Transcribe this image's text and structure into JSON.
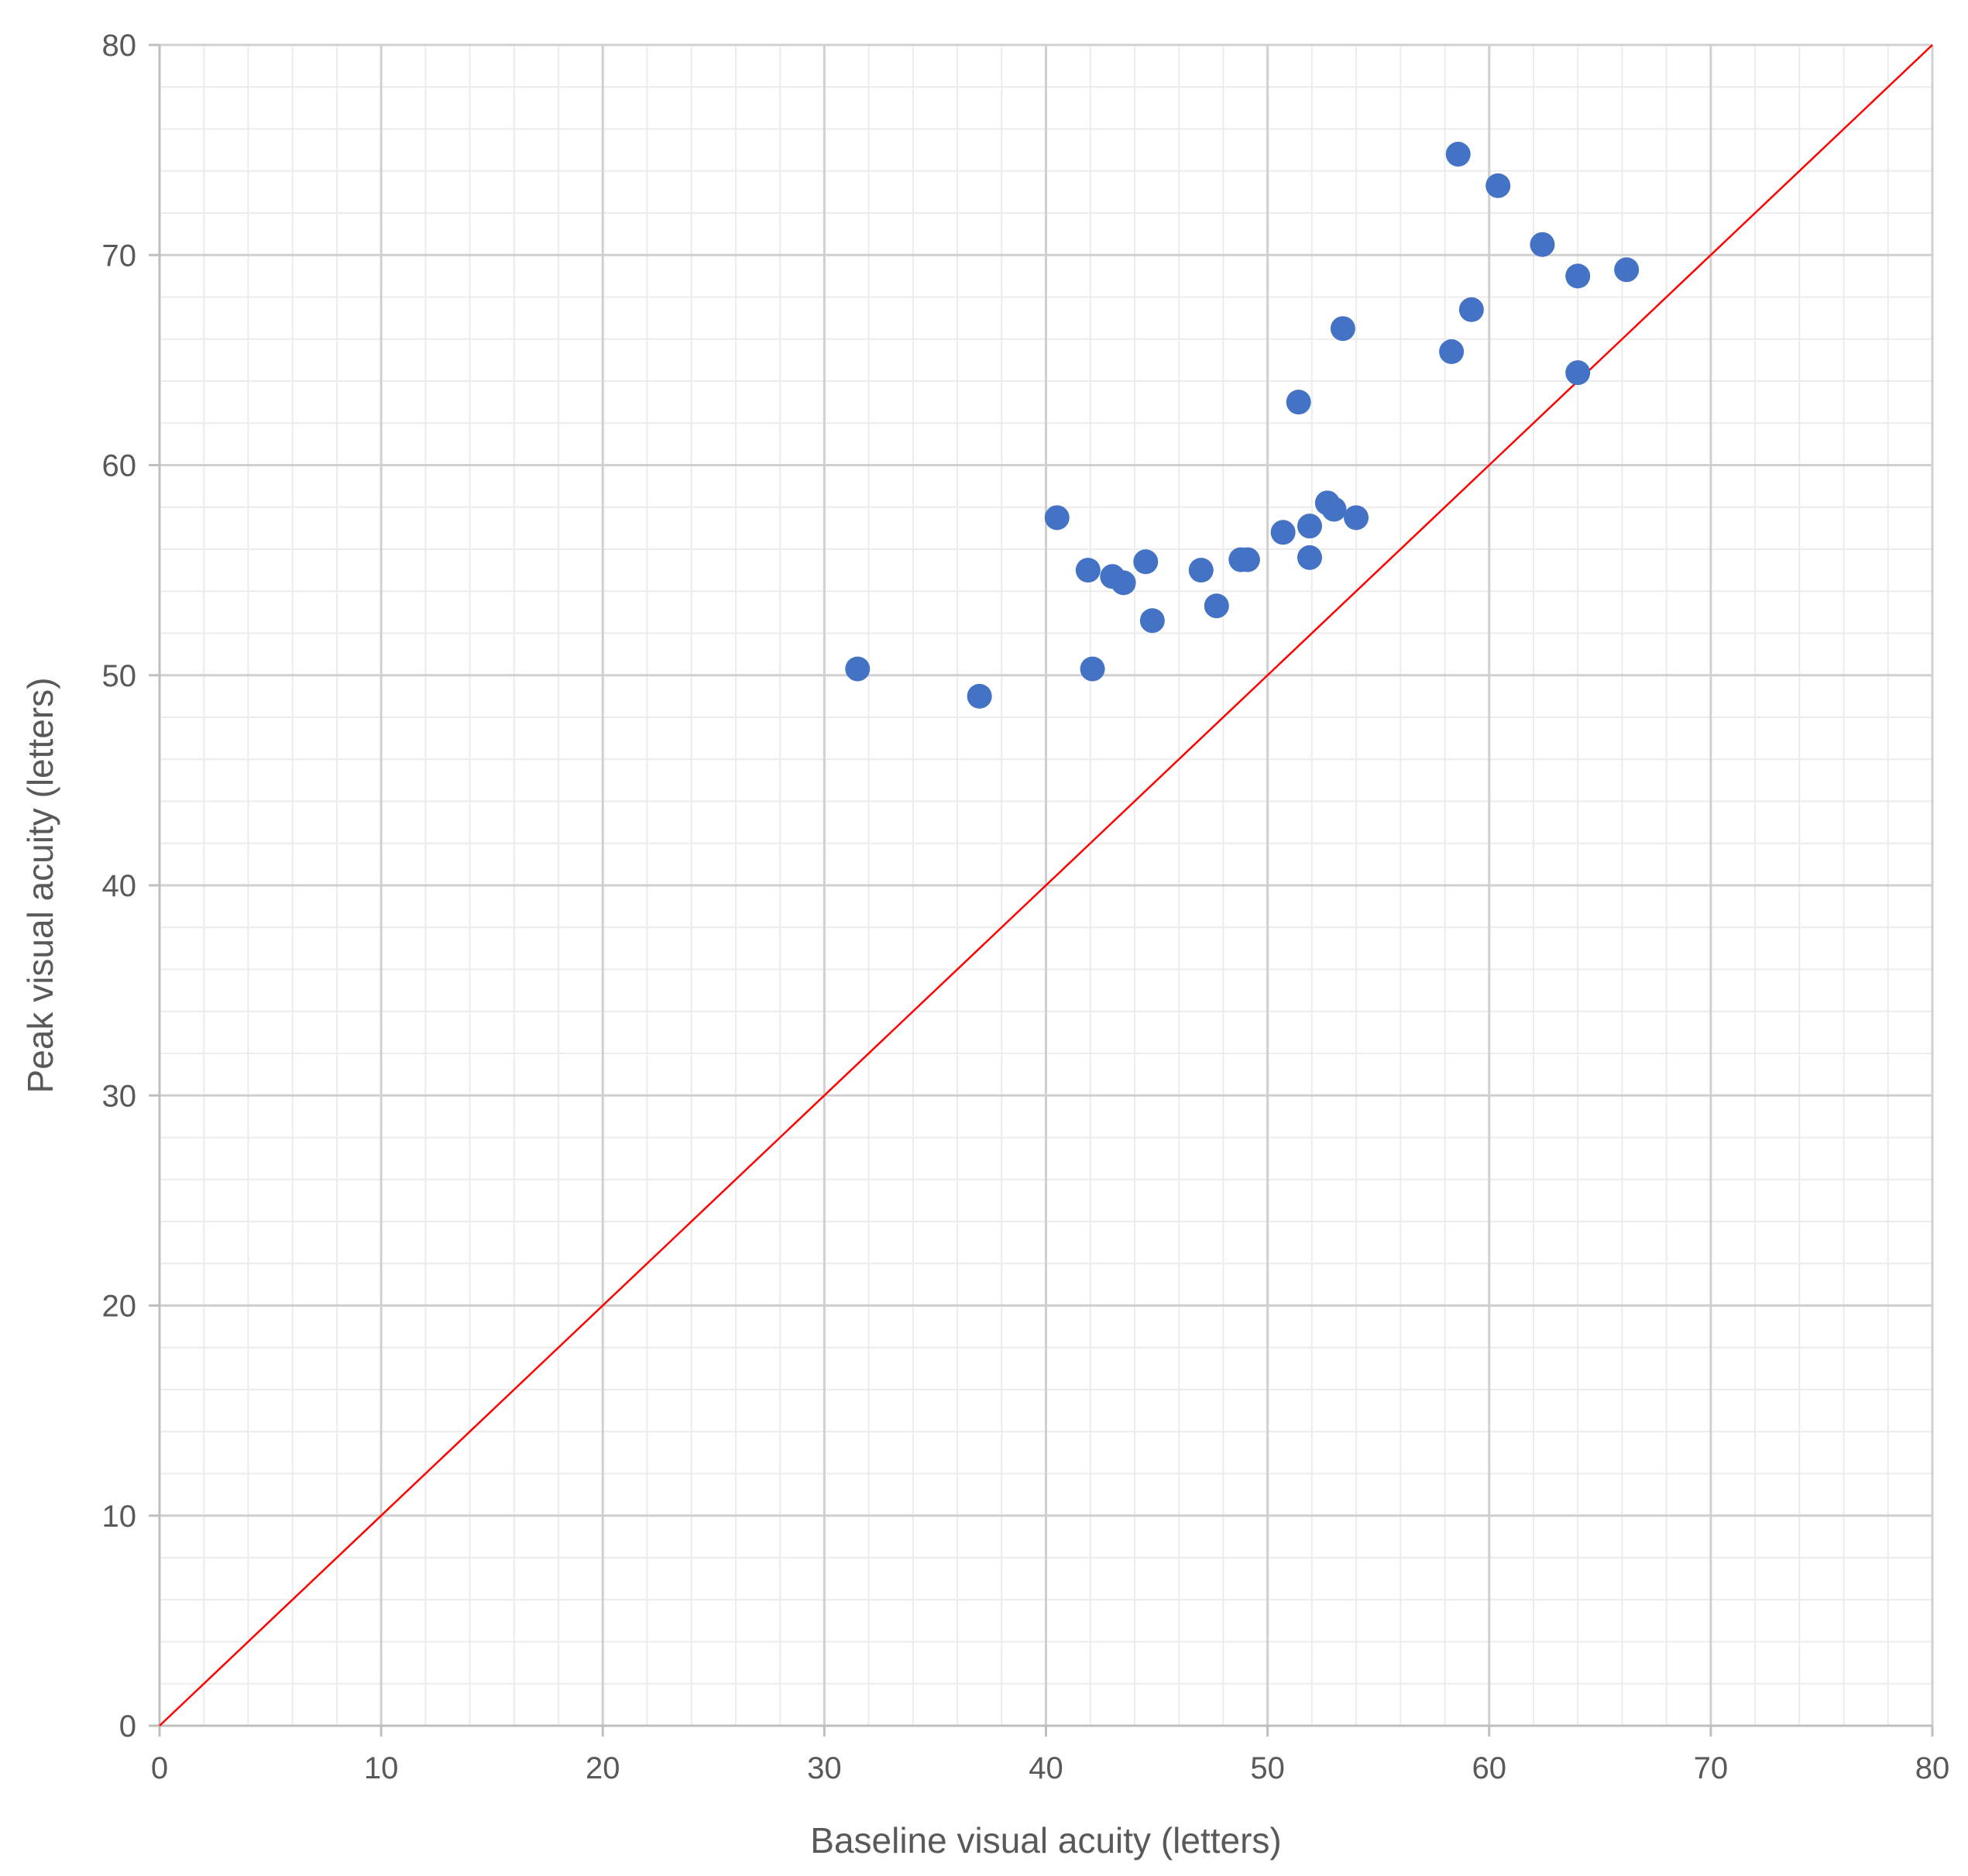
{
  "chart_data": {
    "type": "scatter",
    "title": "",
    "xlabel": "Baseline visual acuity (letters)",
    "ylabel": "Peak visual acuity (letters)",
    "xlim": [
      0,
      80
    ],
    "ylim": [
      0,
      80
    ],
    "x_ticks": [
      "0",
      "10",
      "20",
      "30",
      "40",
      "50",
      "60",
      "70",
      "80"
    ],
    "y_ticks": [
      "0",
      "10",
      "20",
      "30",
      "40",
      "50",
      "60",
      "70",
      "80"
    ],
    "grid": true,
    "minor_grid": true,
    "legend": "none",
    "series": [
      {
        "color": "#4472C4",
        "points": [
          {
            "x": 31.5,
            "y": 50.3
          },
          {
            "x": 37.0,
            "y": 49.0
          },
          {
            "x": 40.5,
            "y": 57.5
          },
          {
            "x": 41.9,
            "y": 55.0
          },
          {
            "x": 42.1,
            "y": 50.3
          },
          {
            "x": 43.0,
            "y": 54.7
          },
          {
            "x": 43.5,
            "y": 54.4
          },
          {
            "x": 44.5,
            "y": 55.4
          },
          {
            "x": 44.8,
            "y": 52.6
          },
          {
            "x": 47.0,
            "y": 55.0
          },
          {
            "x": 47.7,
            "y": 53.3
          },
          {
            "x": 48.8,
            "y": 55.5
          },
          {
            "x": 49.1,
            "y": 55.5
          },
          {
            "x": 50.7,
            "y": 56.8
          },
          {
            "x": 51.4,
            "y": 63.0
          },
          {
            "x": 51.9,
            "y": 57.1
          },
          {
            "x": 51.9,
            "y": 55.6
          },
          {
            "x": 52.7,
            "y": 58.2
          },
          {
            "x": 53.0,
            "y": 57.9
          },
          {
            "x": 53.4,
            "y": 66.5
          },
          {
            "x": 54.0,
            "y": 57.5
          },
          {
            "x": 58.3,
            "y": 65.4
          },
          {
            "x": 58.6,
            "y": 74.8
          },
          {
            "x": 59.2,
            "y": 67.4
          },
          {
            "x": 60.4,
            "y": 73.3
          },
          {
            "x": 62.4,
            "y": 70.5
          },
          {
            "x": 64.0,
            "y": 69.0
          },
          {
            "x": 64.0,
            "y": 64.4
          },
          {
            "x": 66.2,
            "y": 69.3
          }
        ]
      }
    ],
    "reference_line": {
      "type": "identity",
      "from": [
        0,
        0
      ],
      "to": [
        80,
        80
      ],
      "color": "#FF0000"
    }
  }
}
